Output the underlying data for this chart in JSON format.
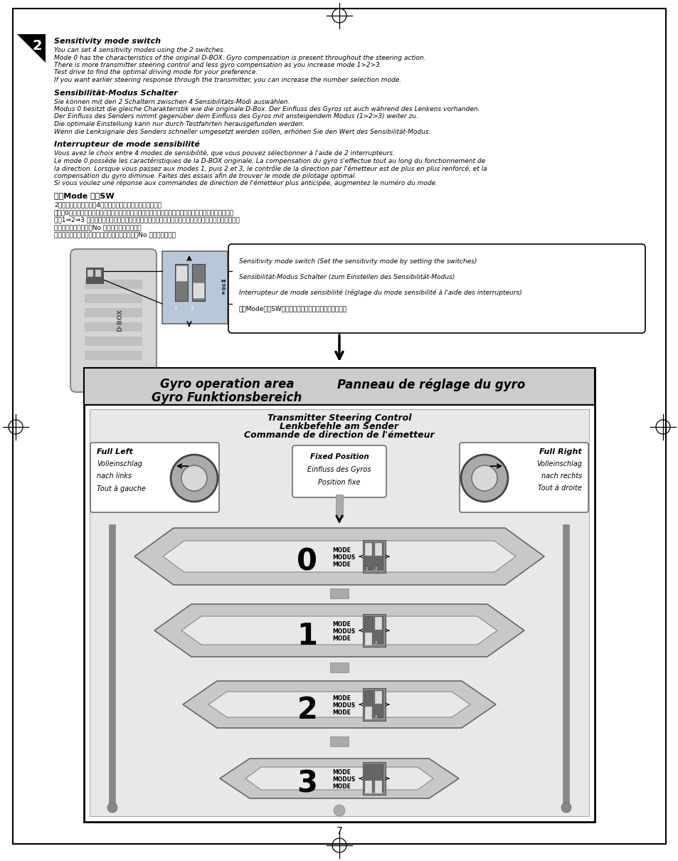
{
  "page_bg": "#ffffff",
  "section_title_en": "Sensitivity mode switch",
  "section_text_en": [
    "You can set 4 sensitivity modes using the 2 switches.",
    "Mode 0 has the characteristics of the original D-BOX. Gyro compensation is present throughout the steering action.",
    "There is more transmitter steering control and less gyro compensation as you increase mode 1>2>3.",
    "Test drive to find the optimal driving mode for your preference.",
    "If you want earlier steering response through the transmitter, you can increase the number selection mode."
  ],
  "section_title_de": "Sensibilität-Modus Schalter",
  "section_text_de": [
    "Sie können mit den 2 Schaltern zwischen 4 Sensibilitäts-Modi auswählen.",
    "Modus 0 besitzt die gleiche Charakteristik wie die originale D-Box. Der Einfluss des Gyros ist auch während des Lenkens vorhanden.",
    "Der Einfluss des Senders nimmt gegenüber dem Einfluss des Gyros mit ansteigendem Modus (1>2>3) weiter zu.",
    "Die optimale Einstellung kann nur durch Testfahrten herausgefunden werden.",
    "Wenn die Lenksignale des Senders schneller umgesetzt werden sollen, erhöhen Sie den Wert des Sensibilität-Modus."
  ],
  "section_title_fr": "Interrupteur de mode sensibilité",
  "section_text_fr": [
    "Vous avez le choix entre 4 modes de sensibilité, que vous pouvez sélectionner à l'aide de 2 interrupteurs.",
    "Le mode 0 possède les caractéristiques de la D-BOX originale. La compensation du gyro s'effectue tout au long du fonctionnement de",
    "la direction. Lorsque vous passez aux modes 1, puis 2 et 3, le contrôle de la direction par l'émetteur est de plus en plus renforcé, et la",
    "compensation du gyro diminue. Faites des essais afin de trouver le mode de pilotage optimal.",
    "Si vous voulez une réponse aux commandes de direction de l'émetteur plus anticipée, augmentez le numéro du mode."
  ],
  "section_title_jp": "感度Mode 切替SW",
  "section_text_jp": [
    "2つのスイッチの位置で4種類の感度モードが選択できます。",
    "モード0は従来のジャイロと同じ特性です。ステアリング操作よりジャイロ補正が全域に優先されます。",
    "次に1⇒2⇒3 の順でジャイロでの補正割合が少なくなり、送信機のステアリング操作が優先されます。",
    "走行させて最適なモーNo を見つけてください。",
    "ステアリングの初期反応を敟感にしたい時はモーNo を多くします。"
  ],
  "callout_text": [
    "Sensitivity mode switch (Set the sensitivity mode by setting the switches)",
    "Sensibilität-Modus Schalter (zum Einstellen des Sensibilität-Modus)",
    "Interrupteur de mode sensibilité (réglage du mode sensibilité à l'aide des interrupteurs)",
    "感度Mode切替SW（ジャイロ感度モードを選択します）"
  ],
  "gyro_header": [
    "Gyro operation area",
    "Panneau de réglage du gyro",
    "Gyro Funktionsbereich"
  ],
  "transmitter_label": [
    "Transmitter Steering Control",
    "Lenkbefehle am Sender",
    "Commande de direction de l'émetteur"
  ],
  "full_left_label": [
    "Full Left",
    "Volleinschlag",
    "nach links",
    "Tout à gauche"
  ],
  "full_right_label": [
    "Full Right",
    "Volleinschlag",
    "nach rechts",
    "Tout à droite"
  ],
  "fixed_pos_label": [
    "Fixed Position",
    "Einfluss des Gyros",
    "Position fixe"
  ],
  "modes": [
    "0",
    "1",
    "2",
    "3"
  ],
  "page_number": "7"
}
